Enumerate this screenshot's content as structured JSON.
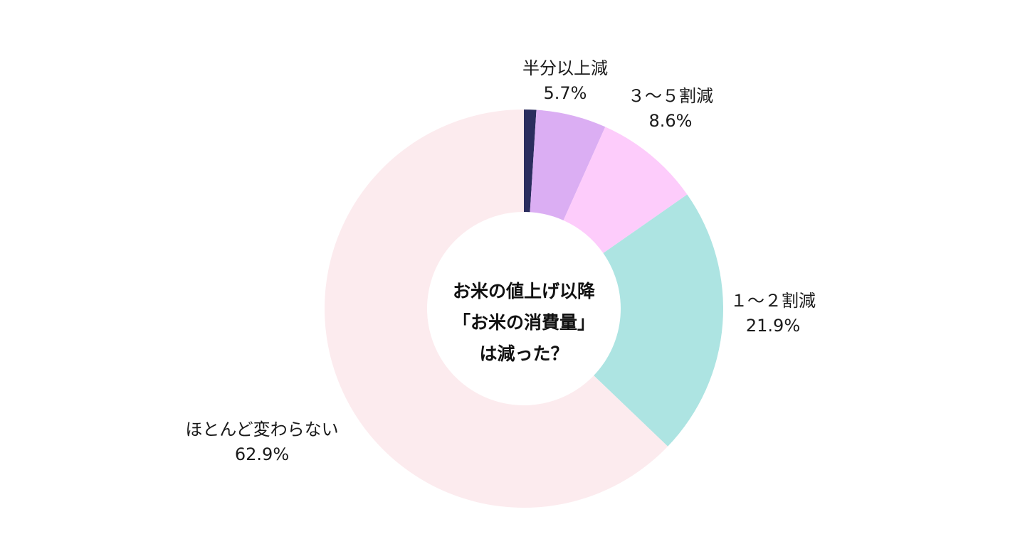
{
  "chart_data": {
    "type": "pie",
    "variant": "donut",
    "center_title_lines": [
      "お米の値上げ以降",
      "「お米の消費量」",
      "は減った？"
    ],
    "slices": [
      {
        "label": "",
        "percent_text": "",
        "value": 1.0,
        "color": "#2b2d5e"
      },
      {
        "label": "半分以上減",
        "percent_text": "5.7%",
        "value": 5.7,
        "color": "#dbaef3"
      },
      {
        "label": "３～５割減",
        "percent_text": "8.6%",
        "value": 8.6,
        "color": "#fdccfb"
      },
      {
        "label": "１～２割減",
        "percent_text": "21.9%",
        "value": 21.9,
        "color": "#ade4e2"
      },
      {
        "label": "ほとんど変わらない",
        "percent_text": "62.9%",
        "value": 62.9,
        "color": "#fcebee"
      }
    ],
    "start_angle_deg": 0,
    "direction": "clockwise"
  }
}
